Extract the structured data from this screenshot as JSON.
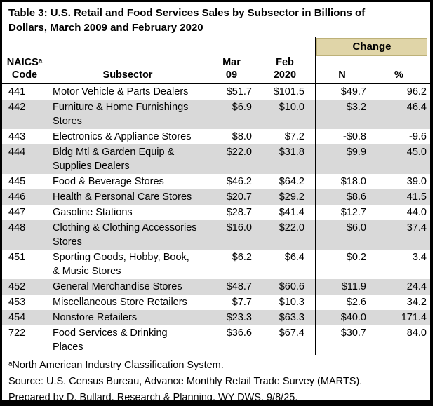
{
  "chart_data": {
    "type": "table",
    "title": "Table 3: U.S. Retail and Food Services Sales by Subsector in Billions of\nDollars, March 2009 and February 2020",
    "change_group_label": "Change",
    "columns": {
      "code": "NAICSᵃ\nCode",
      "subsector": "Subsector",
      "mar09": "Mar\n09",
      "feb2020": "Feb\n2020",
      "n": "N",
      "pct": "%"
    },
    "rows": [
      {
        "code": "441",
        "subsector": "Motor Vehicle & Parts Dealers",
        "mar09": "$51.7",
        "feb2020": "$101.5",
        "n": "$49.7",
        "pct": "96.2"
      },
      {
        "code": "442",
        "subsector": "Furniture & Home Furnishings\nStores",
        "mar09": "$6.9",
        "feb2020": "$10.0",
        "n": "$3.2",
        "pct": "46.4"
      },
      {
        "code": "443",
        "subsector": "Electronics & Appliance Stores",
        "mar09": "$8.0",
        "feb2020": "$7.2",
        "n": "-$0.8",
        "pct": "-9.6"
      },
      {
        "code": "444",
        "subsector": "Bldg Mtl & Garden Equip &\nSupplies Dealers",
        "mar09": "$22.0",
        "feb2020": "$31.8",
        "n": "$9.9",
        "pct": "45.0"
      },
      {
        "code": "445",
        "subsector": "Food & Beverage Stores",
        "mar09": "$46.2",
        "feb2020": "$64.2",
        "n": "$18.0",
        "pct": "39.0"
      },
      {
        "code": "446",
        "subsector": "Health & Personal Care Stores",
        "mar09": "$20.7",
        "feb2020": "$29.2",
        "n": "$8.6",
        "pct": "41.5"
      },
      {
        "code": "447",
        "subsector": "Gasoline Stations",
        "mar09": "$28.7",
        "feb2020": "$41.4",
        "n": "$12.7",
        "pct": "44.0"
      },
      {
        "code": "448",
        "subsector": "Clothing & Clothing Accessories\nStores",
        "mar09": "$16.0",
        "feb2020": "$22.0",
        "n": "$6.0",
        "pct": "37.4"
      },
      {
        "code": "451",
        "subsector": "Sporting Goods, Hobby, Book,\n& Music Stores",
        "mar09": "$6.2",
        "feb2020": "$6.4",
        "n": "$0.2",
        "pct": "3.4"
      },
      {
        "code": "452",
        "subsector": "General Merchandise Stores",
        "mar09": "$48.7",
        "feb2020": "$60.6",
        "n": "$11.9",
        "pct": "24.4"
      },
      {
        "code": "453",
        "subsector": "Miscellaneous Store Retailers",
        "mar09": "$7.7",
        "feb2020": "$10.3",
        "n": "$2.6",
        "pct": "34.2"
      },
      {
        "code": "454",
        "subsector": "Nonstore Retailers",
        "mar09": "$23.3",
        "feb2020": "$63.3",
        "n": "$40.0",
        "pct": "171.4"
      },
      {
        "code": "722",
        "subsector": "Food Services & Drinking\nPlaces",
        "mar09": "$36.6",
        "feb2020": "$67.4",
        "n": "$30.7",
        "pct": "84.0"
      }
    ],
    "footnotes": [
      "ᵃNorth American Industry Classification System.",
      "Source: U.S. Census Bureau, Advance Monthly Retail Trade Survey (MARTS).",
      "Prepared by D. Bullard, Research & Planning, WY DWS, 9/8/25."
    ]
  },
  "colors": {
    "change_bg": "#e0d5a8",
    "change_border": "#bdb178",
    "row_alt_bg": "#d9d9d9",
    "table_border": "#000000"
  }
}
